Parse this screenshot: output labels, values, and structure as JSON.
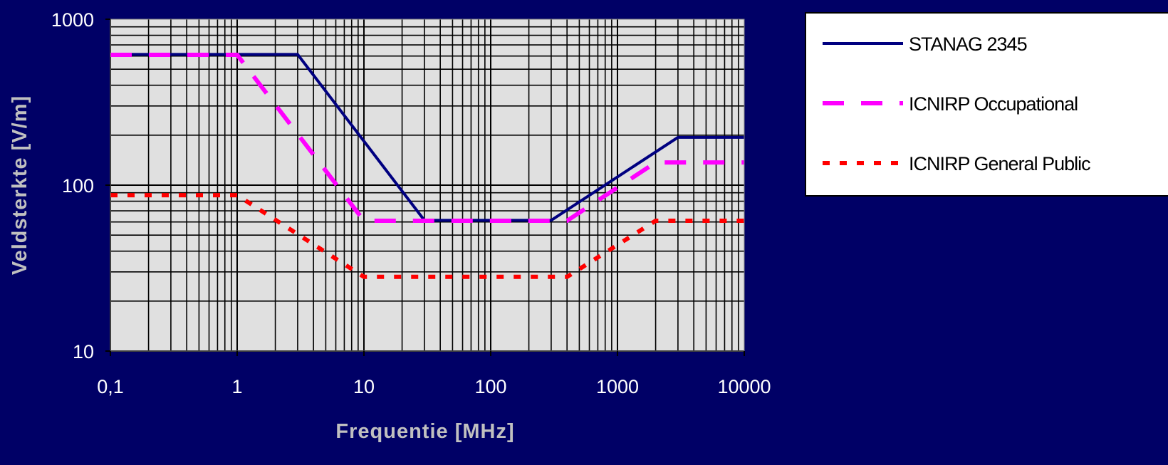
{
  "chart_data": {
    "type": "line",
    "xlabel": "Frequentie [MHz]",
    "ylabel": "Veldsterkte [V/m]",
    "x_scale": "log",
    "y_scale": "log",
    "xlim": [
      0.1,
      10000
    ],
    "ylim": [
      10,
      1000
    ],
    "x_tick_labels": [
      "0,1",
      "1",
      "10",
      "100",
      "1000",
      "10000"
    ],
    "y_tick_labels": [
      "10",
      "100",
      "1000"
    ],
    "grid": true,
    "plot_background": "#e0e0e0",
    "page_background": "#000066",
    "legend_position": "right",
    "series": [
      {
        "name": "STANAG 2345",
        "color": "#000080",
        "dash": "solid",
        "x": [
          0.1,
          3,
          30,
          300,
          3000,
          10000
        ],
        "y": [
          614,
          614,
          61.4,
          61.4,
          194,
          194
        ]
      },
      {
        "name": "ICNIRP Occupational",
        "color": "#ff00ff",
        "dash": "dashed",
        "x": [
          0.1,
          1,
          10,
          400,
          2000,
          10000
        ],
        "y": [
          610,
          610,
          61,
          61,
          137,
          137
        ]
      },
      {
        "name": "ICNIRP General Public",
        "color": "#ff0000",
        "dash": "dotted",
        "x": [
          0.1,
          1,
          10,
          400,
          2000,
          10000
        ],
        "y": [
          87,
          87,
          28,
          28,
          61,
          61
        ]
      }
    ]
  }
}
